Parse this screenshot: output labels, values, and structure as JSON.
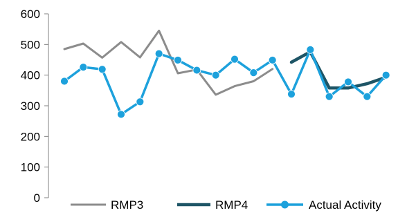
{
  "chart_data": {
    "type": "line",
    "title": "",
    "xlabel": "",
    "ylabel": "",
    "ylim": [
      0,
      600
    ],
    "yticks": [
      0,
      100,
      200,
      300,
      400,
      500,
      600
    ],
    "grid": false,
    "legend_position": "bottom",
    "x": [
      1,
      2,
      3,
      4,
      5,
      6,
      7,
      8,
      9,
      10,
      11,
      12,
      13,
      14,
      15,
      16,
      17,
      18,
      19
    ],
    "series": [
      {
        "name": "RMP3",
        "color": "#8c8c8c",
        "marker": "none",
        "values": [
          485,
          503,
          457,
          508,
          458,
          545,
          406,
          418,
          336,
          364,
          380,
          420,
          null,
          null,
          null,
          null,
          null,
          null,
          null
        ]
      },
      {
        "name": "RMP4",
        "color": "#1e5566",
        "marker": "none",
        "values": [
          null,
          null,
          null,
          null,
          null,
          null,
          null,
          null,
          null,
          null,
          null,
          null,
          442,
          476,
          358,
          358,
          372,
          393,
          null
        ]
      },
      {
        "name": "Actual Activity",
        "color": "#1da1dc",
        "marker": "circle",
        "values": [
          380,
          426,
          419,
          272,
          313,
          470,
          449,
          416,
          400,
          452,
          408,
          449,
          338,
          483,
          330,
          378,
          330,
          400,
          null
        ]
      }
    ]
  }
}
